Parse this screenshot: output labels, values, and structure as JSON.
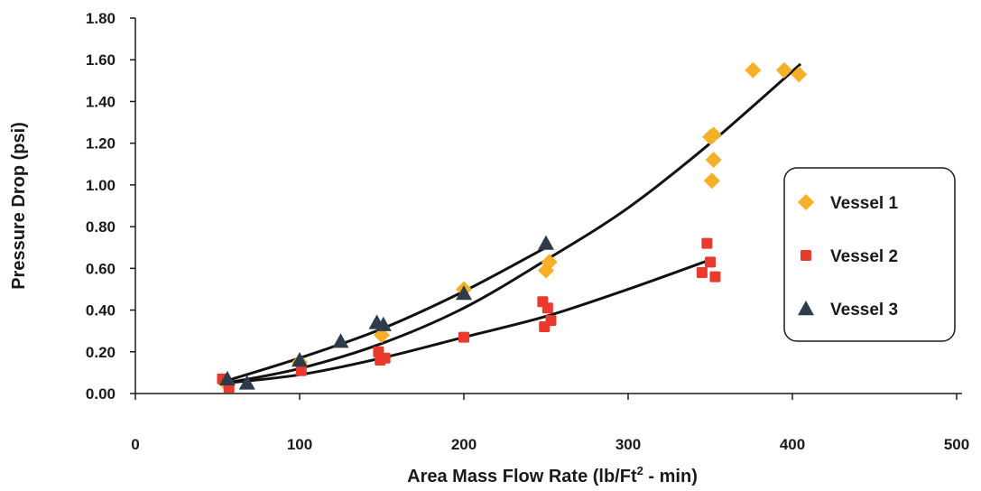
{
  "chart_data": {
    "type": "scatter",
    "xlabel_main": "Area Mass Flow Rate (lb/Ft",
    "xlabel_sup": "2",
    "xlabel_tail": " - min)",
    "ylabel": "Pressure Drop (psi)",
    "xlim": [
      0,
      500
    ],
    "ylim": [
      0,
      1.8
    ],
    "x_ticks": [
      "0",
      "100",
      "200",
      "300",
      "400",
      "500"
    ],
    "y_ticks": [
      "0.00",
      "0.20",
      "0.40",
      "0.60",
      "0.80",
      "1.00",
      "1.20",
      "1.40",
      "1.60",
      "1.80"
    ],
    "legend_position": "right",
    "series": [
      {
        "name": "Vessel 1",
        "marker": "diamond",
        "color": "#F5B027",
        "points": [
          [
            55,
            0.05
          ],
          [
            100,
            0.15
          ],
          [
            150,
            0.28
          ],
          [
            200,
            0.5
          ],
          [
            250,
            0.59
          ],
          [
            252,
            0.63
          ],
          [
            350,
            1.23
          ],
          [
            352,
            1.24
          ],
          [
            352,
            1.12
          ],
          [
            351,
            1.02
          ],
          [
            376,
            1.55
          ],
          [
            395,
            1.55
          ],
          [
            404,
            1.53
          ]
        ],
        "trend": [
          [
            55,
            0.05
          ],
          [
            100,
            0.12
          ],
          [
            150,
            0.24
          ],
          [
            200,
            0.41
          ],
          [
            250,
            0.64
          ],
          [
            300,
            0.89
          ],
          [
            350,
            1.2
          ],
          [
            405,
            1.58
          ]
        ]
      },
      {
        "name": "Vessel 2",
        "marker": "square",
        "color": "#EA3A2E",
        "points": [
          [
            53,
            0.07
          ],
          [
            57,
            0.03
          ],
          [
            101,
            0.11
          ],
          [
            148,
            0.2
          ],
          [
            149,
            0.16
          ],
          [
            152,
            0.17
          ],
          [
            200,
            0.27
          ],
          [
            248,
            0.44
          ],
          [
            249,
            0.32
          ],
          [
            251,
            0.41
          ],
          [
            253,
            0.35
          ],
          [
            345,
            0.58
          ],
          [
            348,
            0.72
          ],
          [
            350,
            0.63
          ],
          [
            353,
            0.56
          ]
        ],
        "trend": [
          [
            55,
            0.05
          ],
          [
            100,
            0.09
          ],
          [
            150,
            0.17
          ],
          [
            200,
            0.27
          ],
          [
            250,
            0.37
          ],
          [
            300,
            0.5
          ],
          [
            353,
            0.65
          ]
        ]
      },
      {
        "name": "Vessel 3",
        "marker": "triangle",
        "color": "#2D3B4A",
        "points": [
          [
            56,
            0.07
          ],
          [
            68,
            0.05
          ],
          [
            100,
            0.16
          ],
          [
            125,
            0.25
          ],
          [
            147,
            0.34
          ],
          [
            151,
            0.33
          ],
          [
            200,
            0.48
          ],
          [
            250,
            0.72
          ]
        ],
        "trend": [
          [
            55,
            0.06
          ],
          [
            100,
            0.17
          ],
          [
            150,
            0.31
          ],
          [
            200,
            0.49
          ],
          [
            250,
            0.7
          ]
        ]
      }
    ]
  }
}
